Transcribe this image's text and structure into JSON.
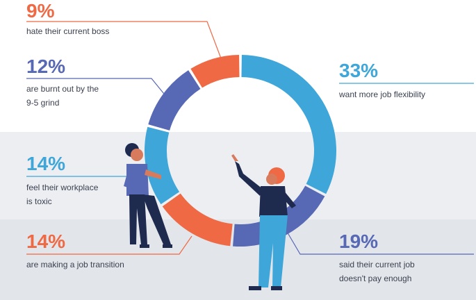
{
  "chart_data": {
    "type": "pie",
    "donut": true,
    "slices": [
      {
        "value": 33,
        "label": "33%",
        "desc": [
          "want more job flexibility"
        ],
        "color": "#3ea6d8"
      },
      {
        "value": 19,
        "label": "19%",
        "desc": [
          "said their current job",
          "doesn't pay enough"
        ],
        "color": "#5768b5"
      },
      {
        "value": 14,
        "label": "14%",
        "desc": [
          "are making a job transition"
        ],
        "color": "#ee6944"
      },
      {
        "value": 14,
        "label": "14%",
        "desc": [
          "feel their workplace",
          "is toxic"
        ],
        "color": "#3ea6d8"
      },
      {
        "value": 12,
        "label": "12%",
        "desc": [
          "are burnt out by the",
          "9-5 grind"
        ],
        "color": "#5768b5"
      },
      {
        "value": 9,
        "label": "9%",
        "desc": [
          "hate their current boss"
        ],
        "color": "#ee6944"
      }
    ]
  }
}
